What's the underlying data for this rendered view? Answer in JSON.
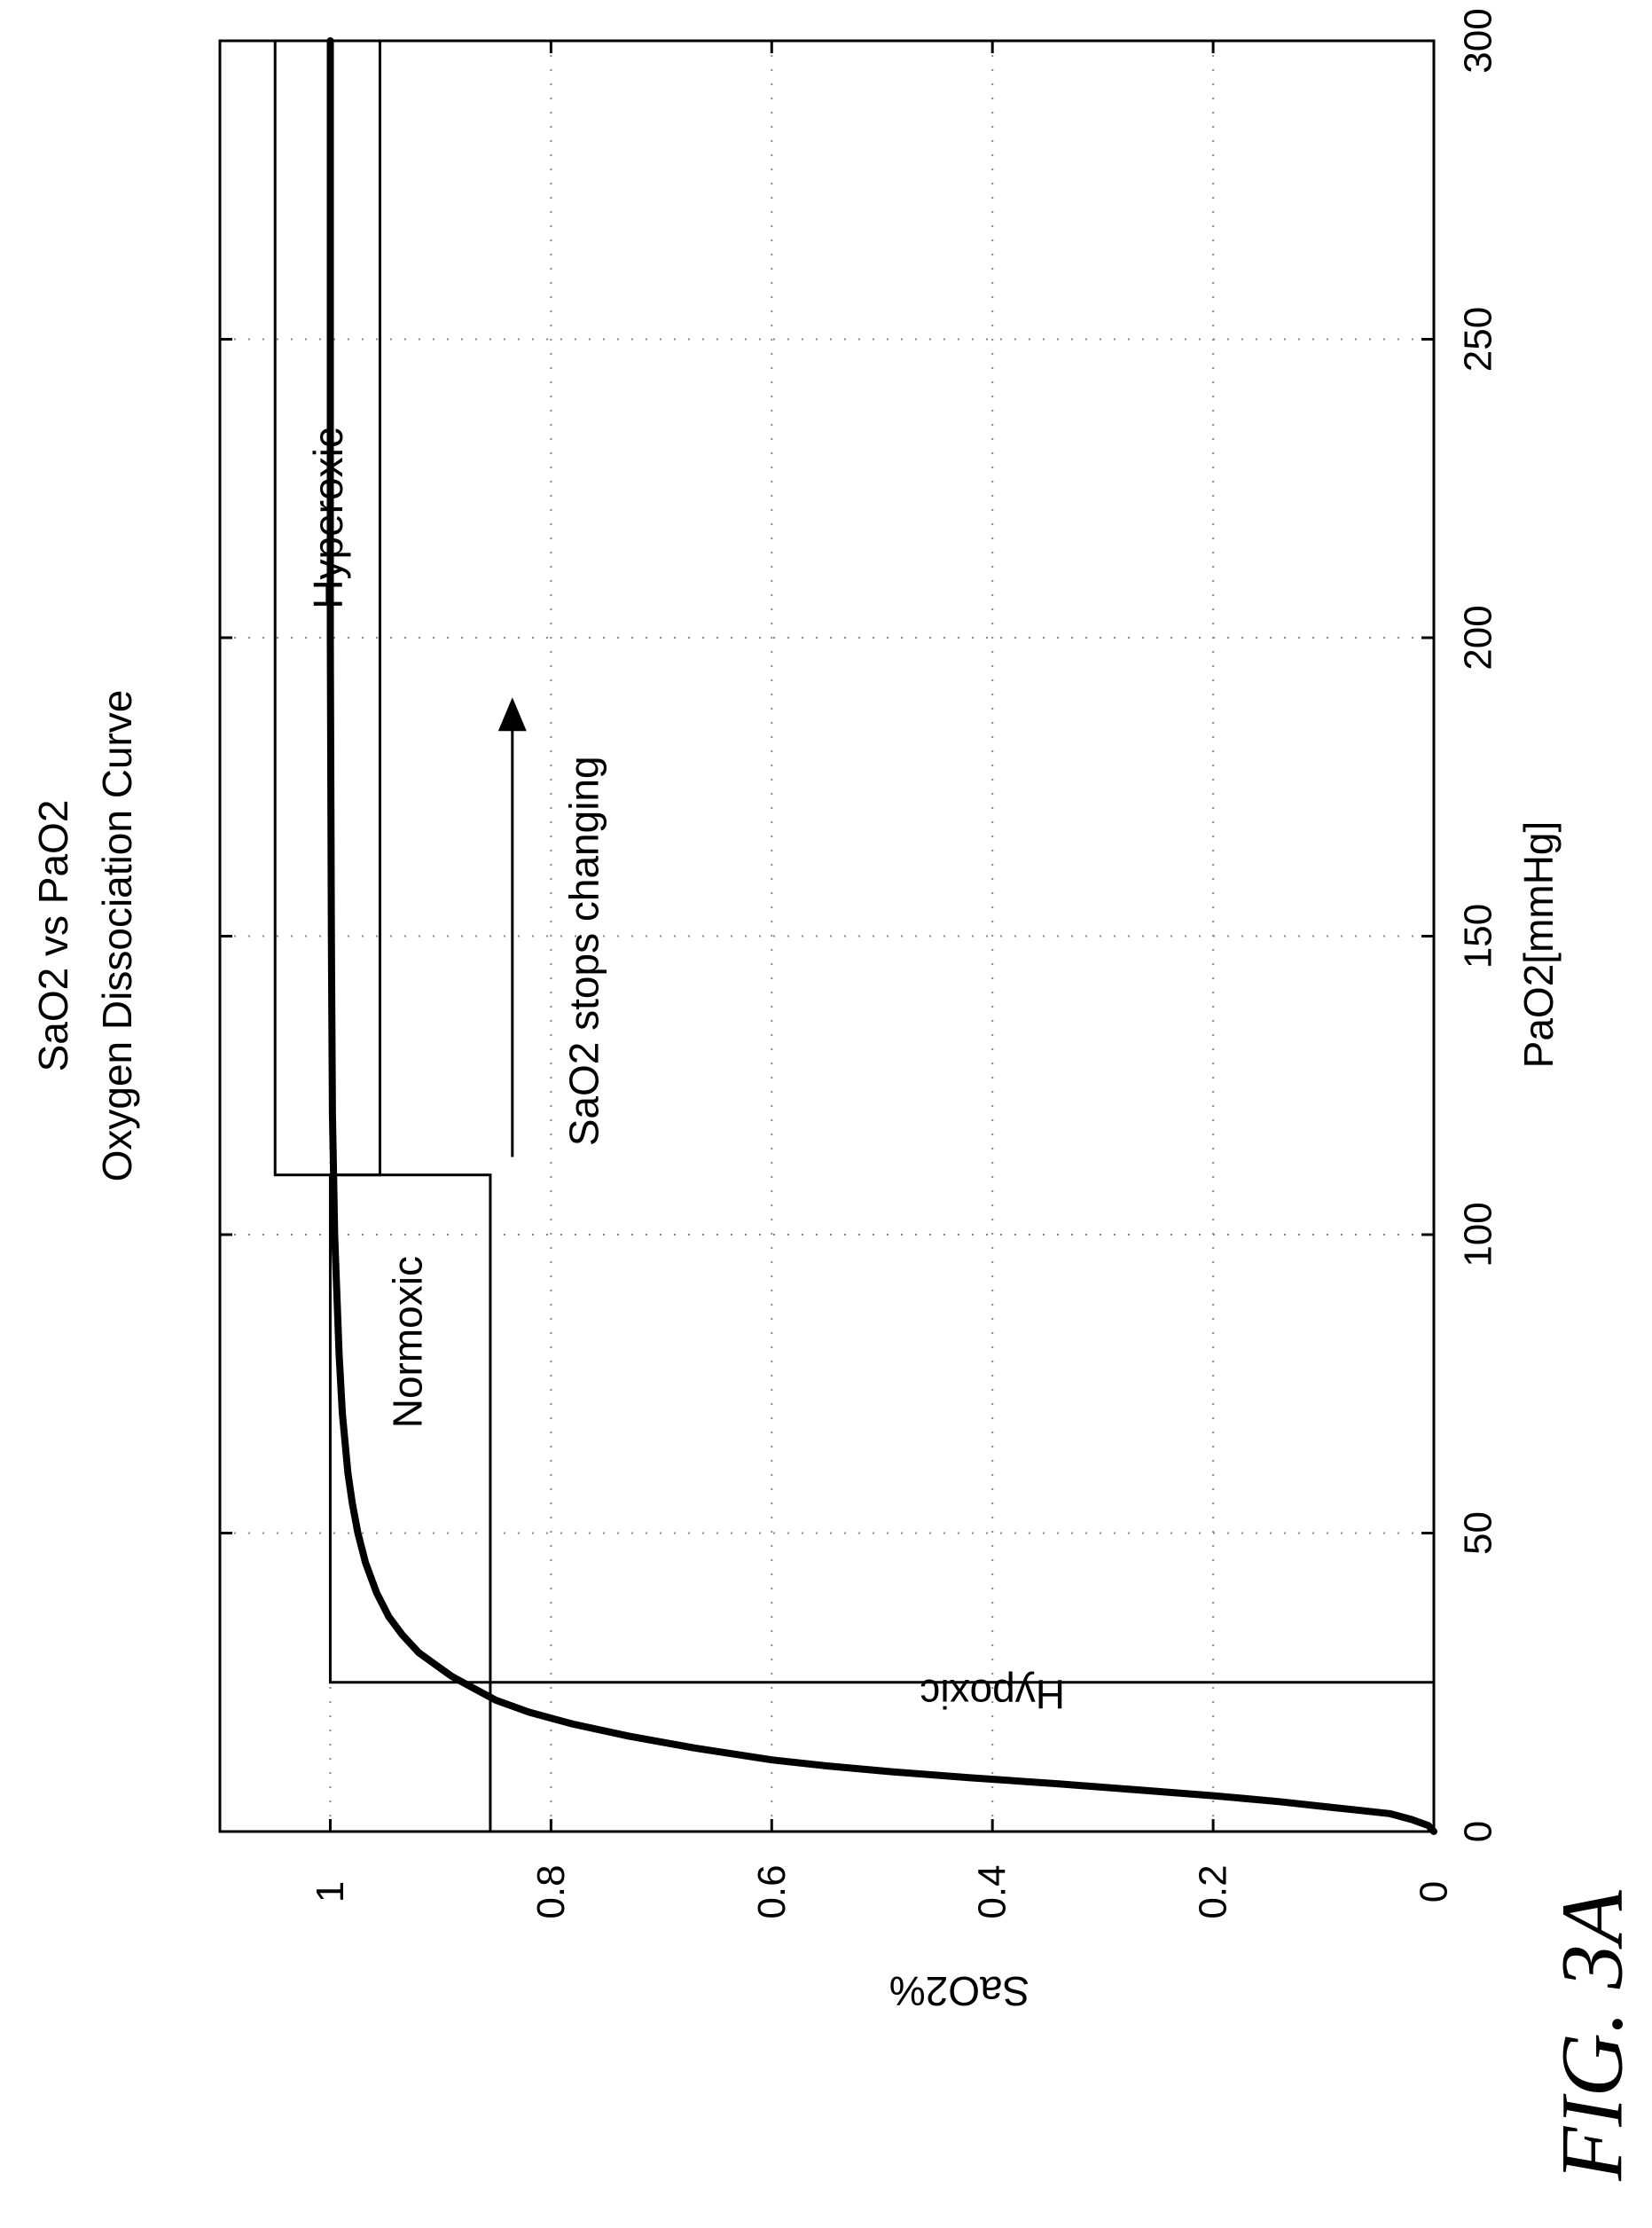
{
  "title": "SaO2 vs PaO2",
  "subtitle": "Oxygen Dissociation Curve",
  "figure_label": "FIG. 3A",
  "chart_data": {
    "type": "line",
    "title": "SaO2 vs PaO2",
    "subtitle": "Oxygen Dissociation Curve",
    "xlabel": "PaO2[mmHg]",
    "ylabel": "SaO2%",
    "xlim": [
      0,
      300
    ],
    "ylim": [
      0,
      1.1
    ],
    "grid": true,
    "orientation": "figure rotated 90 degrees counter-clockwise",
    "x_ticks": [
      0,
      50,
      100,
      150,
      200,
      250,
      300
    ],
    "x_tick_labels": [
      "0",
      "50",
      "100",
      "150",
      "200",
      "250",
      "300"
    ],
    "y_ticks": [
      0,
      0.2,
      0.4,
      0.6,
      0.8,
      1
    ],
    "y_tick_labels": [
      "0",
      "0.2",
      "0.4",
      "0.6",
      "0.8",
      "1"
    ],
    "series": [
      {
        "x": [
          0,
          1,
          2,
          3,
          4,
          5,
          6,
          7,
          8,
          9,
          10,
          11,
          12,
          14,
          16,
          18,
          20,
          22,
          24,
          26,
          28,
          30,
          33,
          36,
          40,
          45,
          50,
          55,
          60,
          70,
          80,
          90,
          100,
          110,
          120,
          150,
          200,
          250,
          300
        ],
        "y": [
          0,
          0.005,
          0.02,
          0.04,
          0.09,
          0.14,
          0.2,
          0.27,
          0.34,
          0.42,
          0.49,
          0.55,
          0.6,
          0.67,
          0.73,
          0.78,
          0.82,
          0.85,
          0.87,
          0.89,
          0.905,
          0.92,
          0.935,
          0.947,
          0.958,
          0.968,
          0.975,
          0.98,
          0.984,
          0.989,
          0.992,
          0.994,
          0.996,
          0.997,
          0.998,
          0.999,
          1.0,
          1.0,
          1.0
        ]
      }
    ],
    "regions": [
      {
        "label": "Hypoxic",
        "x0": 0,
        "x1": 25,
        "y0": 0,
        "y1": 0.855
      },
      {
        "label": "Normoxic",
        "x0": 25,
        "x1": 110,
        "y0": 0.855,
        "y1": 1.0
      },
      {
        "label": "Hyperoxic",
        "x0": 110,
        "x1": 300,
        "y0": 0.955,
        "y1": 1.05
      }
    ],
    "annotations": [
      {
        "text": "SaO2 stops changing",
        "arrow": true,
        "arrow_from_x": 113,
        "arrow_to_x": 190,
        "y": 0.835
      }
    ]
  }
}
